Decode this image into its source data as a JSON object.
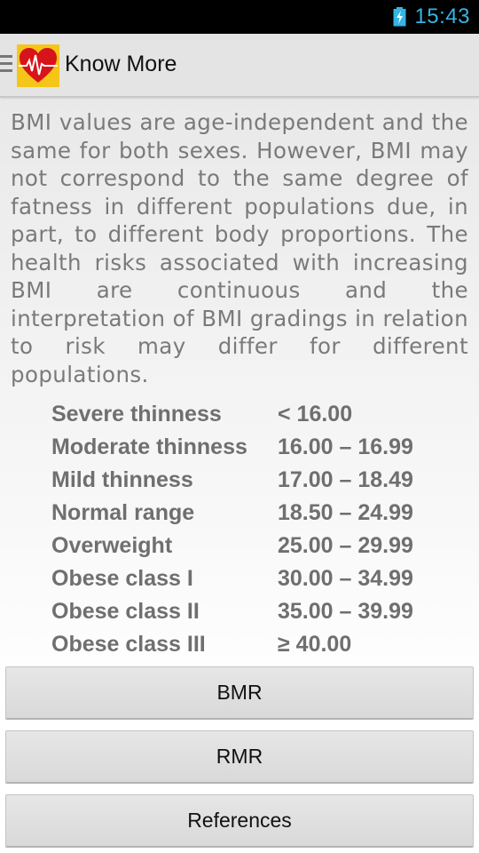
{
  "status_bar": {
    "time": "15:43",
    "battery_icon": "battery-charging-icon",
    "time_color": "#33b5e5"
  },
  "action_bar": {
    "title": "Know More",
    "app_icon": "heart-ecg-icon"
  },
  "content": {
    "paragraph": "BMI values are age-independent and the same for both sexes. However, BMI may not correspond to the same degree of fatness in different populations due, in part, to different body proportions. The health risks associated with increasing BMI are continuous and the interpretation of BMI gradings in relation to risk may differ for different populations.",
    "bmi_table": [
      {
        "category": "Severe thinness",
        "range": "< 16.00"
      },
      {
        "category": "Moderate thinness",
        "range": "16.00 – 16.99"
      },
      {
        "category": "Mild thinness",
        "range": "17.00 – 18.49"
      },
      {
        "category": "Normal range",
        "range": "18.50 – 24.99"
      },
      {
        "category": "Overweight",
        "range": "25.00 – 29.99"
      },
      {
        "category": "Obese class I",
        "range": "30.00 – 34.99"
      },
      {
        "category": "Obese class II",
        "range": "35.00 – 39.99"
      },
      {
        "category": "Obese class III",
        "range": "≥ 40.00"
      }
    ]
  },
  "buttons": {
    "bmr": "BMR",
    "rmr": "RMR",
    "references": "References"
  }
}
